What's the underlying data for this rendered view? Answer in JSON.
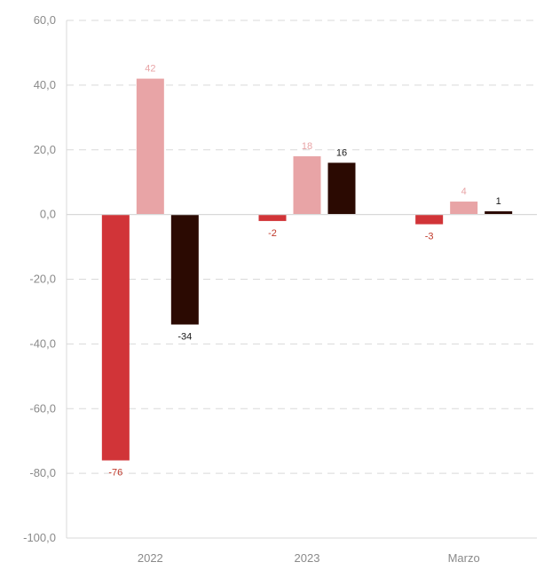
{
  "chart_data": {
    "type": "bar",
    "categories": [
      "2022",
      "2023",
      "Marzo"
    ],
    "series": [
      {
        "values": [
          -76,
          -2,
          -3
        ],
        "labels": [
          "-76",
          "-2",
          "-3"
        ],
        "color": "#d13438",
        "label_color": "#c0392b"
      },
      {
        "values": [
          42,
          18,
          4
        ],
        "labels": [
          "42",
          "18",
          "4"
        ],
        "color": "#e8a4a6",
        "label_color": "#e8a4a6"
      },
      {
        "values": [
          -34,
          16,
          1
        ],
        "labels": [
          "-34",
          "16",
          "1"
        ],
        "color": "#2b0a02",
        "label_color": "#1a1a1a"
      }
    ],
    "ylim": [
      -100,
      60
    ],
    "yticks": [
      60,
      40,
      20,
      0,
      -20,
      -40,
      -60,
      -80,
      -100
    ],
    "ytick_labels": [
      "60,0",
      "40,0",
      "20,0",
      "0,0",
      "-20,0",
      "-40,0",
      "-60,0",
      "-80,0",
      "-100,0"
    ],
    "grid": true,
    "title": "",
    "xlabel": "",
    "ylabel": ""
  }
}
